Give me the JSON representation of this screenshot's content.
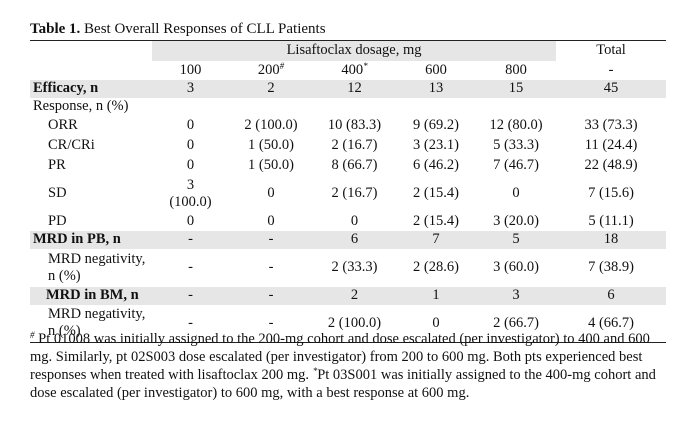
{
  "caption": {
    "label": "Table 1.",
    "text": "Best Overall Responses of CLL Patients"
  },
  "header": {
    "group_label": "Lisaftoclax dosage, mg",
    "total_label": "Total",
    "doses": [
      {
        "value": "100",
        "mark": ""
      },
      {
        "value": "200",
        "mark": "#"
      },
      {
        "value": "400",
        "mark": "*"
      },
      {
        "value": "600",
        "mark": ""
      },
      {
        "value": "800",
        "mark": ""
      }
    ],
    "total_sub": "-"
  },
  "rows": {
    "efficacy": {
      "label": "Efficacy, n",
      "cells": [
        "3",
        "2",
        "12",
        "13",
        "15",
        "45"
      ]
    },
    "response_heading": {
      "label": "Response, n (%)"
    },
    "orr": {
      "label": "ORR",
      "cells": [
        "0",
        "2 (100.0)",
        "10 (83.3)",
        "9 (69.2)",
        "12 (80.0)",
        "33 (73.3)"
      ]
    },
    "cr": {
      "label": "CR/CRi",
      "cells": [
        "0",
        "1 (50.0)",
        "2 (16.7)",
        "3 (23.1)",
        "5 (33.3)",
        "11 (24.4)"
      ]
    },
    "pr": {
      "label": "PR",
      "cells": [
        "0",
        "1 (50.0)",
        "8 (66.7)",
        "6 (46.2)",
        "7 (46.7)",
        "22 (48.9)"
      ]
    },
    "sd": {
      "label": "SD",
      "cell0_line1": "3",
      "cell0_line2": "(100.0)",
      "cells": [
        "0",
        "2 (16.7)",
        "2 (15.4)",
        "0",
        "7 (15.6)"
      ]
    },
    "pd": {
      "label": "PD",
      "cells": [
        "0",
        "0",
        "0",
        "2 (15.4)",
        "3 (20.0)",
        "5 (11.1)"
      ]
    },
    "mrd_pb": {
      "label": "MRD in PB, n",
      "cells": [
        "-",
        "-",
        "6",
        "7",
        "5",
        "18"
      ]
    },
    "mrd_pb_neg": {
      "label_line1": "MRD negativity,",
      "label_line2": "n (%)",
      "cells": [
        "-",
        "-",
        "2 (33.3)",
        "2 (28.6)",
        "3 (60.0)",
        "7 (38.9)"
      ]
    },
    "mrd_bm": {
      "label": "MRD in BM, n",
      "cells": [
        "-",
        "-",
        "2",
        "1",
        "3",
        "6"
      ]
    },
    "mrd_bm_neg": {
      "label_line1": "MRD negativity,",
      "label_line2": "n (%)",
      "cells": [
        "-",
        "-",
        "2 (100.0)",
        "0",
        "2 (66.7)",
        "4 (66.7)"
      ]
    }
  },
  "footnote": {
    "mark1": "#",
    "text1": "Pt 01008 was initially assigned to the 200-mg cohort and dose escalated (per investigator) to 400 and 600 mg. Similarly, pt 02S003 dose escalated (per investigator) from 200 to 600 mg. Both pts experienced best responses when treated with lisaftoclax 200 mg.",
    "mark2": "*",
    "text2": "Pt 03S001 was initially assigned to the 400-mg cohort and dose escalated (per investigator) to 600 mg, with a best response at 600 mg."
  }
}
